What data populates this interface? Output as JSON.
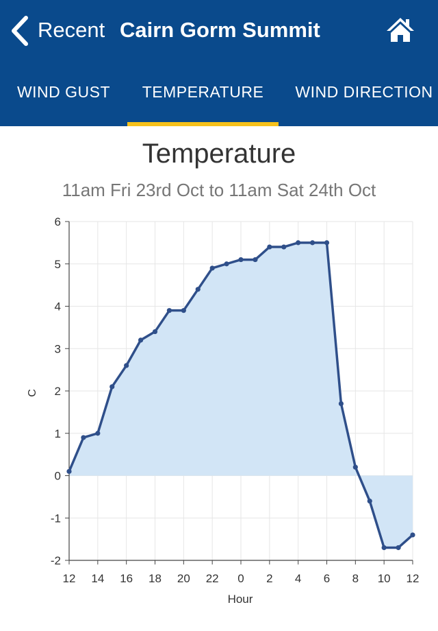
{
  "header": {
    "back_label": "Recent",
    "title": "Cairn Gorm Summit",
    "back_icon": "chevron-left-icon",
    "home_icon": "home-icon",
    "background_color": "#0a4a8c"
  },
  "tabs": [
    {
      "label": "WIND GUST",
      "active": false
    },
    {
      "label": "TEMPERATURE",
      "active": true
    },
    {
      "label": "WIND DIRECTION",
      "active": false
    }
  ],
  "colors": {
    "tab_indicator": "#f6c11b",
    "line": "#2f4f8a",
    "area_fill": "#d2e5f6"
  },
  "chart_data": {
    "type": "area",
    "title": "Temperature",
    "subtitle": "11am Fri 23rd Oct to 11am Sat 24th Oct",
    "xlabel": "Hour",
    "ylabel": "C",
    "x_ticks": [
      "12",
      "14",
      "16",
      "18",
      "20",
      "22",
      "0",
      "2",
      "4",
      "6",
      "8",
      "10",
      "12"
    ],
    "y_ticks": [
      "6",
      "5",
      "4",
      "3",
      "2",
      "1",
      "0",
      "-1",
      "-2"
    ],
    "ylim": [
      -2,
      6
    ],
    "grid": true,
    "baseline": 0,
    "points": [
      {
        "hour": "12",
        "value": 0.1
      },
      {
        "hour": "13",
        "value": 0.9
      },
      {
        "hour": "14",
        "value": 1.0
      },
      {
        "hour": "15",
        "value": 2.1
      },
      {
        "hour": "16",
        "value": 2.6
      },
      {
        "hour": "17",
        "value": 3.2
      },
      {
        "hour": "18",
        "value": 3.4
      },
      {
        "hour": "19",
        "value": 3.9
      },
      {
        "hour": "20",
        "value": 3.9
      },
      {
        "hour": "21",
        "value": 4.4
      },
      {
        "hour": "22",
        "value": 4.9
      },
      {
        "hour": "23",
        "value": 5.0
      },
      {
        "hour": "0",
        "value": 5.1
      },
      {
        "hour": "1",
        "value": 5.1
      },
      {
        "hour": "2",
        "value": 5.4
      },
      {
        "hour": "3",
        "value": 5.4
      },
      {
        "hour": "4",
        "value": 5.5
      },
      {
        "hour": "5",
        "value": 5.5
      },
      {
        "hour": "6",
        "value": 5.5
      },
      {
        "hour": "7",
        "value": 1.7
      },
      {
        "hour": "8",
        "value": 0.2
      },
      {
        "hour": "9",
        "value": -0.6
      },
      {
        "hour": "10",
        "value": -1.7
      },
      {
        "hour": "11",
        "value": -1.7
      },
      {
        "hour": "12",
        "value": -1.4
      }
    ]
  }
}
